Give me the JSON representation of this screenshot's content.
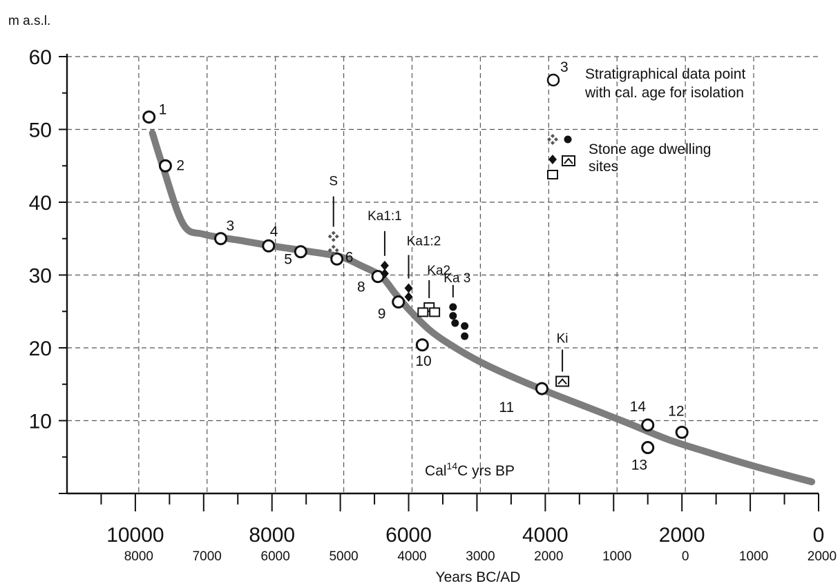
{
  "chart_data": {
    "type": "line",
    "ylabel": "m a.s.l.",
    "ylim": [
      0,
      60
    ],
    "yticks": [
      10,
      20,
      30,
      40,
      50,
      60
    ],
    "xlim": [
      11000,
      0
    ],
    "xticks_bp": [
      {
        "value": 10000,
        "label": "10000"
      },
      {
        "value": 8000,
        "label": "8000"
      },
      {
        "value": 6000,
        "label": "6000"
      },
      {
        "value": 4000,
        "label": "4000"
      },
      {
        "value": 2000,
        "label": "2000"
      },
      {
        "value": 0,
        "label": "0"
      }
    ],
    "xticks_bcad": [
      {
        "value": 9950,
        "label": "8000"
      },
      {
        "value": 8950,
        "label": "7000"
      },
      {
        "value": 7950,
        "label": "6000"
      },
      {
        "value": 6950,
        "label": "5000"
      },
      {
        "value": 5950,
        "label": "4000"
      },
      {
        "value": 4950,
        "label": "3000"
      },
      {
        "value": 3950,
        "label": "2000"
      },
      {
        "value": 2950,
        "label": "1000"
      },
      {
        "value": 1950,
        "label": "0"
      },
      {
        "value": 950,
        "label": "1000"
      },
      {
        "value": -50,
        "label": "2000"
      }
    ],
    "xlabel": "Years BC/AD",
    "inner_label": {
      "prefix": "Cal",
      "sup": "14",
      "suffix": "C yrs BP"
    },
    "grid": true,
    "shoreline_curve": [
      [
        9750,
        49.5
      ],
      [
        9600,
        45
      ],
      [
        9300,
        37
      ],
      [
        9000,
        35.6
      ],
      [
        8500,
        34.8
      ],
      [
        8000,
        34.0
      ],
      [
        7500,
        33.3
      ],
      [
        7000,
        32.5
      ],
      [
        6700,
        31.3
      ],
      [
        6400,
        29.8
      ],
      [
        6200,
        27.5
      ],
      [
        6000,
        25.3
      ],
      [
        5700,
        22.5
      ],
      [
        5400,
        20.5
      ],
      [
        5000,
        18.3
      ],
      [
        4600,
        16.5
      ],
      [
        4000,
        14.1
      ],
      [
        3400,
        11.9
      ],
      [
        2800,
        9.7
      ],
      [
        2200,
        7.4
      ],
      [
        1600,
        5.6
      ],
      [
        1000,
        3.9
      ],
      [
        500,
        2.6
      ],
      [
        100,
        1.6
      ]
    ],
    "isolation_points": [
      {
        "label": "1",
        "x": 9800,
        "y": 51.7
      },
      {
        "label": "2",
        "x": 9560,
        "y": 45.0
      },
      {
        "label": "3",
        "x": 8750,
        "y": 35.0
      },
      {
        "label": "4",
        "x": 8050,
        "y": 34.0
      },
      {
        "label": "5",
        "x": 7580,
        "y": 33.2
      },
      {
        "label": "6",
        "x": 7050,
        "y": 32.2
      },
      {
        "label": "8",
        "x": 6450,
        "y": 29.8
      },
      {
        "label": "9",
        "x": 6150,
        "y": 26.3
      },
      {
        "label": "10",
        "x": 5800,
        "y": 20.4
      },
      {
        "label": "11",
        "x": 4050,
        "y": 14.4
      },
      {
        "label": "12",
        "x": 2000,
        "y": 8.4
      },
      {
        "label": "13",
        "x": 2500,
        "y": 6.3
      },
      {
        "label": "14",
        "x": 2500,
        "y": 9.4
      }
    ],
    "dwelling_sites": [
      {
        "label": "S",
        "marker": "cross",
        "points": [
          [
            7100,
            35.3
          ],
          [
            7100,
            33.4
          ]
        ]
      },
      {
        "label": "Ka1:1",
        "marker": "diamond",
        "points": [
          [
            6350,
            31.3
          ],
          [
            6350,
            30.2
          ]
        ]
      },
      {
        "label": "Ka1:2",
        "marker": "diamond",
        "points": [
          [
            6000,
            28.2
          ],
          [
            6000,
            27.0
          ]
        ]
      },
      {
        "label": "Ka2",
        "marker": "square",
        "points": [
          [
            5700,
            25.5
          ],
          [
            5790,
            24.8
          ],
          [
            5620,
            24.8
          ]
        ]
      },
      {
        "label": "Ka 3",
        "marker": "dot",
        "points": [
          [
            5350,
            25.6
          ],
          [
            5350,
            24.4
          ],
          [
            5320,
            23.4
          ],
          [
            5180,
            23.0
          ],
          [
            5180,
            21.6
          ]
        ]
      },
      {
        "label": "Ki",
        "marker": "square-tri",
        "points": [
          [
            3750,
            15.4
          ]
        ]
      }
    ],
    "legend": [
      {
        "symbol": "circle",
        "symbol_label": "3",
        "text": [
          "Stratigraphical data point",
          "with cal. age for isolation"
        ]
      },
      {
        "symbol": "dwelling-markers",
        "text": [
          "Stone age dwelling",
          "sites"
        ]
      }
    ]
  }
}
